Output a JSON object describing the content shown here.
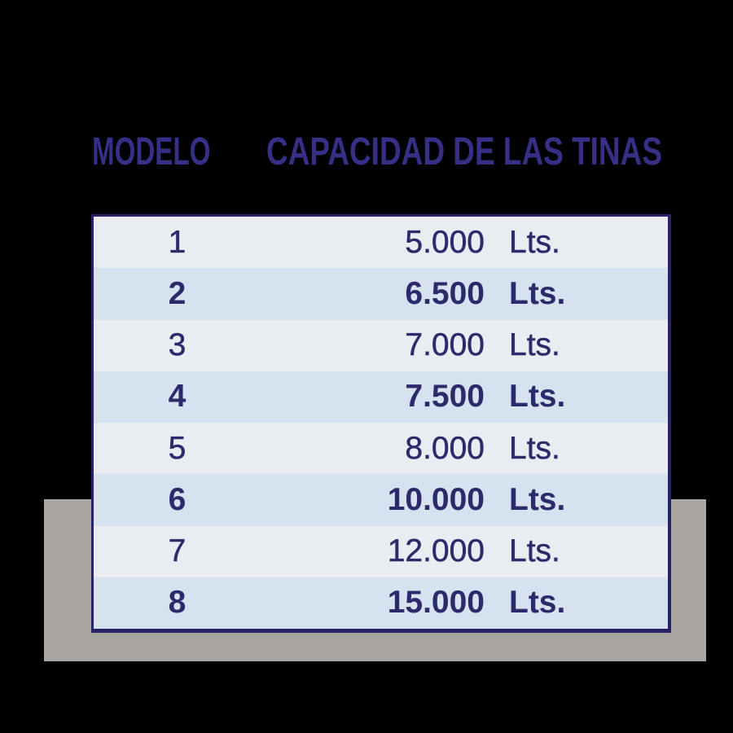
{
  "header": {
    "col_model": "MODELO",
    "col_capacity": "CAPACIDAD DE LAS TINAS"
  },
  "table": {
    "rows": [
      {
        "model": "1",
        "capacity": "5.000",
        "unit": "Lts."
      },
      {
        "model": "2",
        "capacity": "6.500",
        "unit": "Lts."
      },
      {
        "model": "3",
        "capacity": "7.000",
        "unit": "Lts."
      },
      {
        "model": "4",
        "capacity": "7.500",
        "unit": "Lts."
      },
      {
        "model": "5",
        "capacity": "8.000",
        "unit": "Lts."
      },
      {
        "model": "6",
        "capacity": "10.000",
        "unit": "Lts."
      },
      {
        "model": "7",
        "capacity": "12.000",
        "unit": "Lts."
      },
      {
        "model": "8",
        "capacity": "15.000",
        "unit": "Lts."
      }
    ]
  },
  "colors": {
    "background": "#000000",
    "gray_slab": "#a9a6a2",
    "header_text": "#362f85",
    "table_text": "#2d2a6b",
    "table_border": "#2a2166",
    "row_light": "#e9edf2",
    "row_blue": "#d5e2ef"
  },
  "chart_data": {
    "type": "table",
    "title": "",
    "columns": [
      "MODELO",
      "CAPACIDAD DE LAS TINAS"
    ],
    "rows": [
      [
        "1",
        "5.000 Lts."
      ],
      [
        "2",
        "6.500 Lts."
      ],
      [
        "3",
        "7.000 Lts."
      ],
      [
        "4",
        "7.500 Lts."
      ],
      [
        "5",
        "8.000 Lts."
      ],
      [
        "6",
        "10.000 Lts."
      ],
      [
        "7",
        "12.000 Lts."
      ],
      [
        "8",
        "15.000 Lts."
      ]
    ],
    "models": [
      1,
      2,
      3,
      4,
      5,
      6,
      7,
      8
    ],
    "capacities_liters": [
      5000,
      6500,
      7000,
      7500,
      8000,
      10000,
      12000,
      15000
    ],
    "unit": "Lts."
  }
}
